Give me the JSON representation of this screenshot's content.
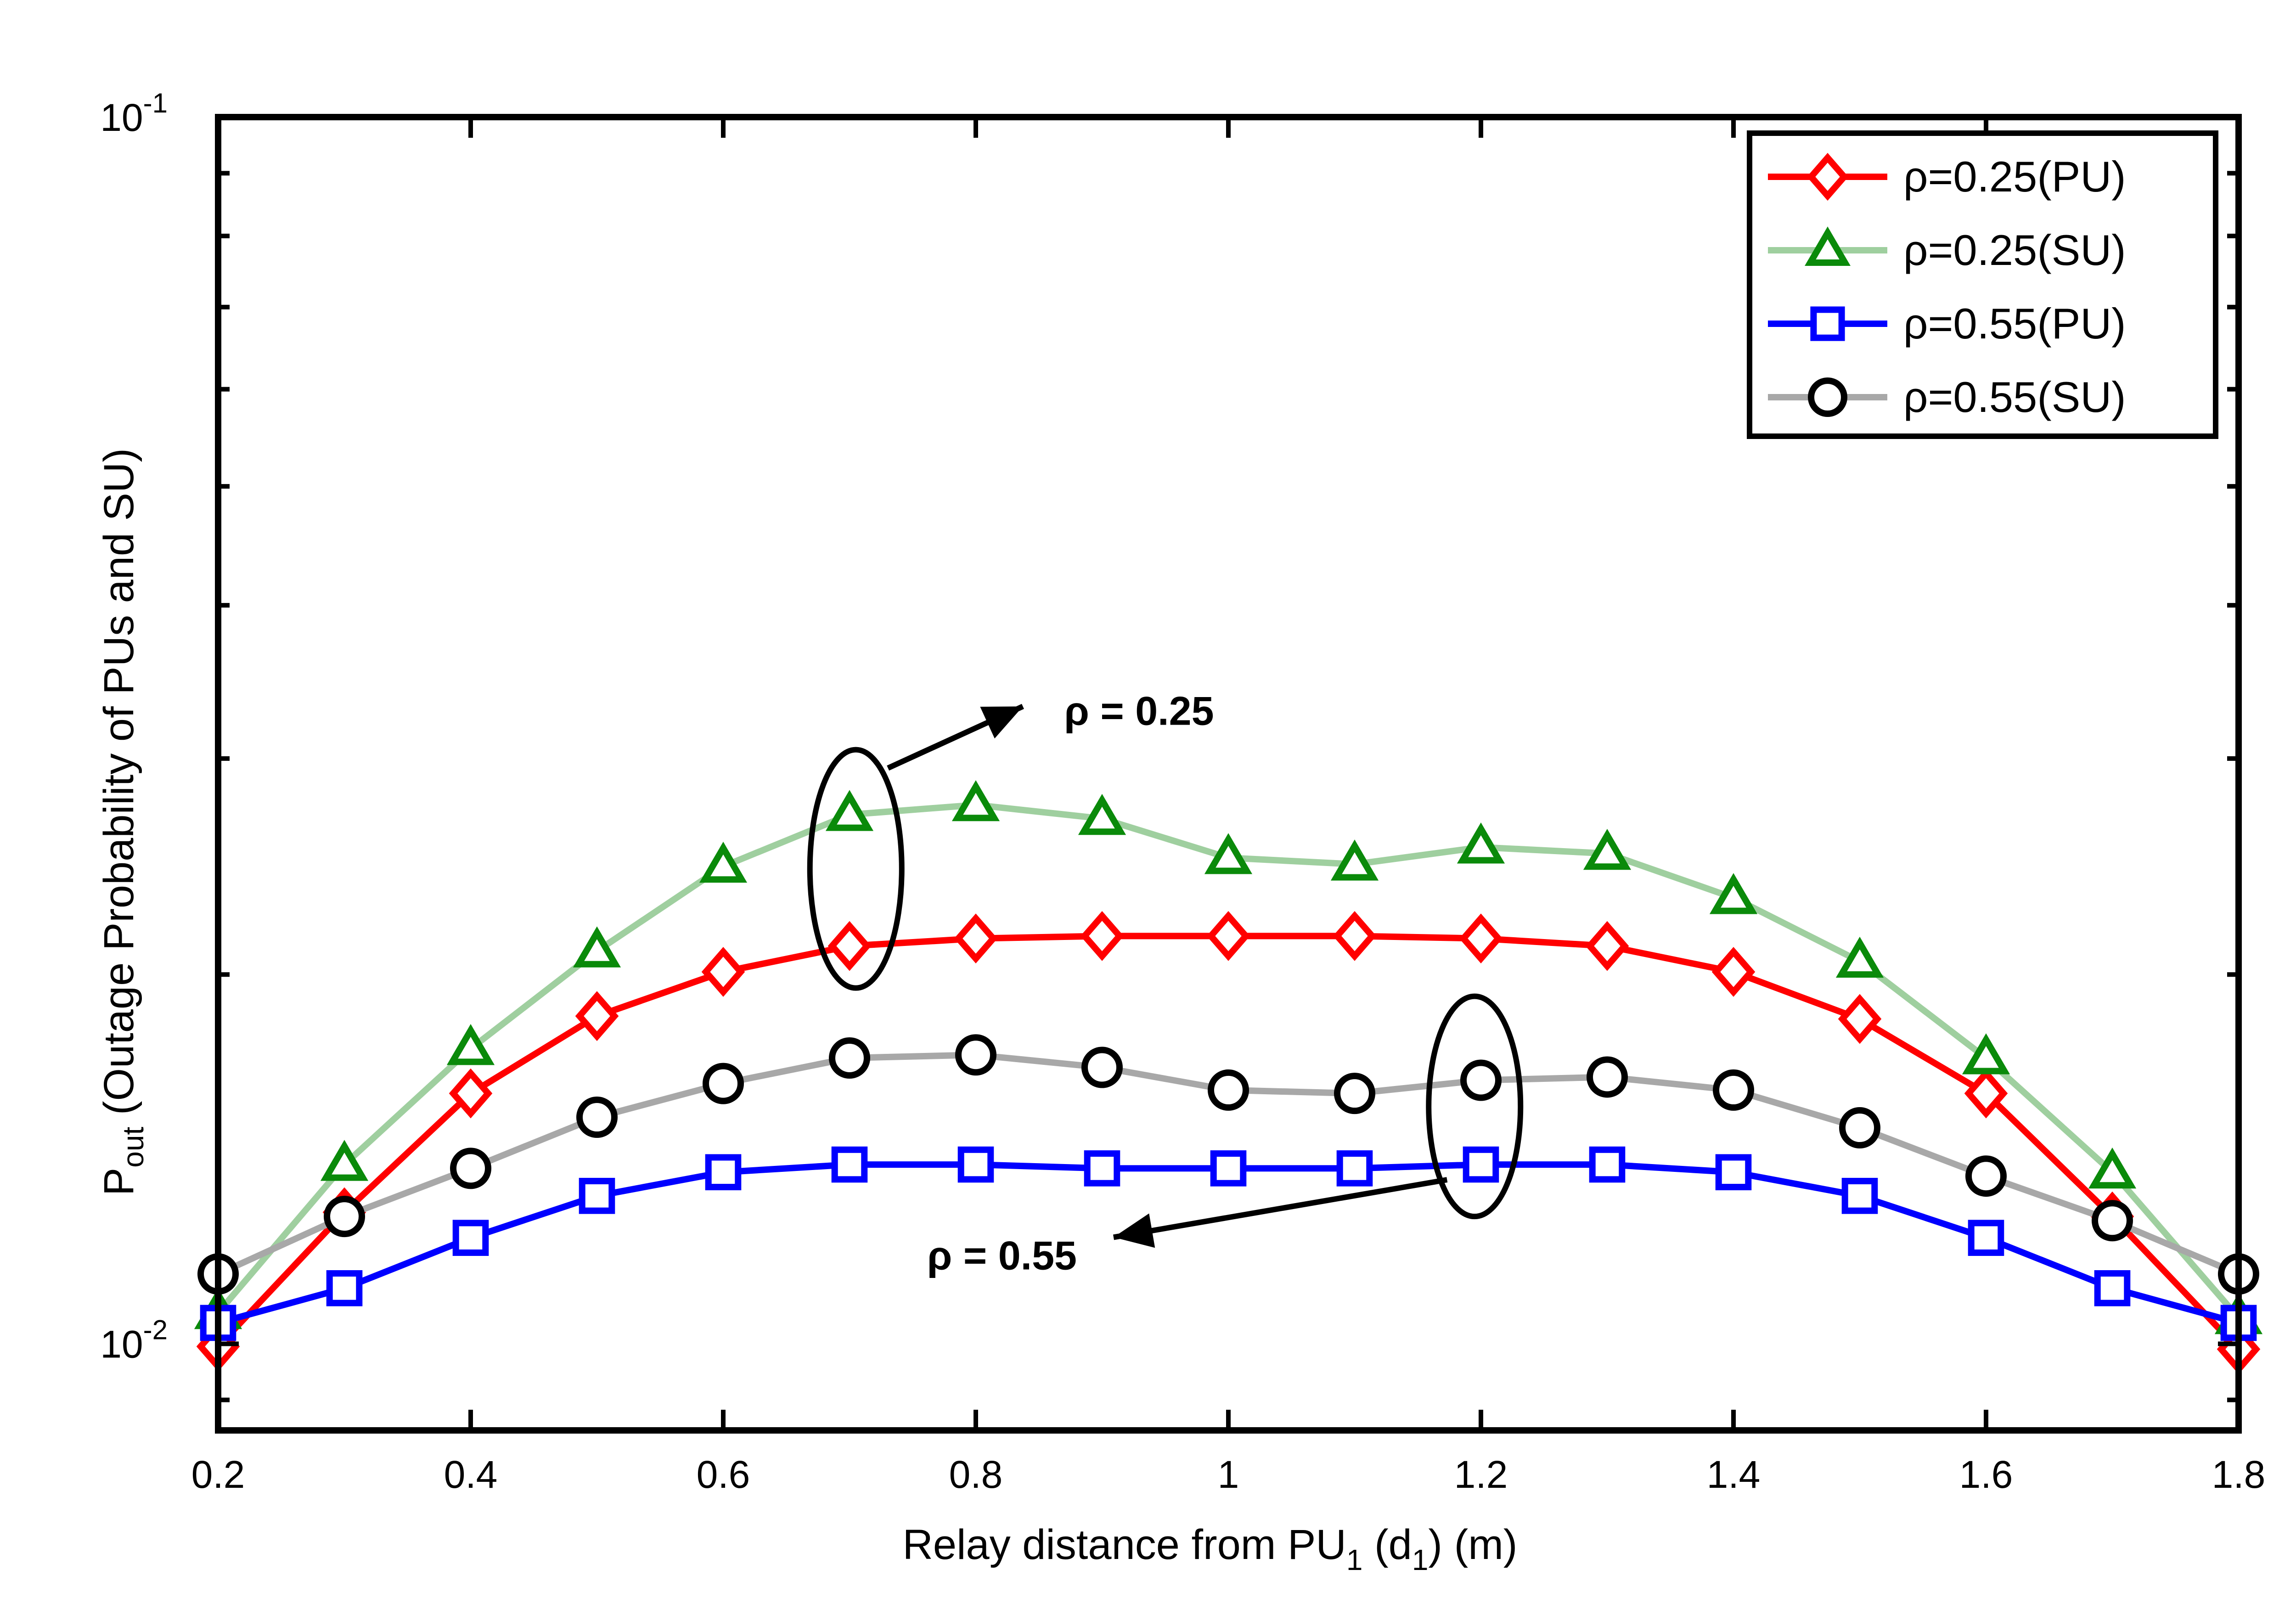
{
  "chart_data": {
    "type": "line",
    "xlabel": {
      "pre": "Relay distance from PU",
      "sub1": "1",
      "mid": " (d",
      "sub2": "1",
      "post": ") (m)"
    },
    "ylabel": {
      "base": "P",
      "sub": "out",
      "rest": " (Outage Probability of PUs and SU)"
    },
    "xlim": [
      0.2,
      1.8
    ],
    "ylim": [
      0.0085,
      0.1
    ],
    "yscale": "log",
    "grid": false,
    "legend_position": "top-right",
    "x_ticks": [
      0.2,
      0.4,
      0.6,
      0.8,
      1.0,
      1.2,
      1.4,
      1.6,
      1.8
    ],
    "x_tick_labels": [
      "0.2",
      "0.4",
      "0.6",
      "0.8",
      "1",
      "1.2",
      "1.4",
      "1.6",
      "1.8"
    ],
    "y_ticks": [
      {
        "value": 0.1,
        "base": "10",
        "exp": "-1"
      },
      {
        "value": 0.01,
        "base": "10",
        "exp": "-2"
      }
    ],
    "x": [
      0.2,
      0.3,
      0.4,
      0.5,
      0.6,
      0.7,
      0.8,
      0.9,
      1.0,
      1.1,
      1.2,
      1.3,
      1.4,
      1.5,
      1.6,
      1.7,
      1.8
    ],
    "series": [
      {
        "name": "ρ=0.25(PU)",
        "color": "#ff0000",
        "marker": "diamond",
        "values": [
          0.00995,
          0.0128,
          0.016,
          0.0185,
          0.0201,
          0.0211,
          0.0214,
          0.0215,
          0.0215,
          0.0215,
          0.0214,
          0.0211,
          0.0201,
          0.0184,
          0.016,
          0.0127,
          0.0099
        ]
      },
      {
        "name": "ρ=0.25(SU)",
        "color": "#0a8a0a",
        "line_color": "#9fcf9f",
        "marker": "triangle",
        "values": [
          0.0106,
          0.014,
          0.0174,
          0.0209,
          0.0245,
          0.027,
          0.0275,
          0.0268,
          0.0249,
          0.0246,
          0.0254,
          0.0251,
          0.0231,
          0.0205,
          0.0171,
          0.0138,
          0.0105
        ]
      },
      {
        "name": "ρ=0.55(PU)",
        "color": "#0000ff",
        "marker": "square",
        "values": [
          0.0104,
          0.0111,
          0.0122,
          0.0132,
          0.0138,
          0.014,
          0.014,
          0.0139,
          0.0139,
          0.0139,
          0.014,
          0.014,
          0.0138,
          0.0132,
          0.0122,
          0.0111,
          0.0104
        ]
      },
      {
        "name": "ρ=0.55(SU)",
        "color": "#000000",
        "line_color": "#a8a8a8",
        "marker": "circle",
        "values": [
          0.0114,
          0.0127,
          0.0139,
          0.0153,
          0.0163,
          0.0171,
          0.0172,
          0.0168,
          0.0161,
          0.016,
          0.0164,
          0.0165,
          0.0161,
          0.015,
          0.0137,
          0.0126,
          0.0114
        ]
      }
    ],
    "annotations": [
      {
        "text": "ρ = 0.25",
        "x": 0.87,
        "y": 0.0328,
        "ellipse_x": 0.705,
        "ellipse_y_top": 0.0305,
        "ellipse_y_bottom": 0.0195
      },
      {
        "text": "ρ = 0.55",
        "x": 0.88,
        "y": 0.0118,
        "ellipse_x": 1.195,
        "ellipse_y_top": 0.0192,
        "ellipse_y_bottom": 0.0127
      }
    ]
  }
}
